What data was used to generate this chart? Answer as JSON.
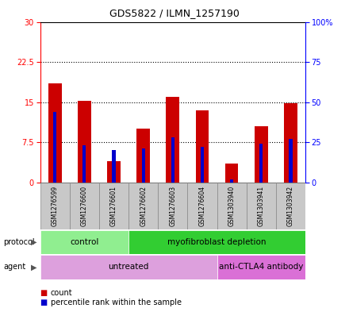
{
  "title": "GDS5822 / ILMN_1257190",
  "samples": [
    "GSM1276599",
    "GSM1276600",
    "GSM1276601",
    "GSM1276602",
    "GSM1276603",
    "GSM1276604",
    "GSM1303940",
    "GSM1303941",
    "GSM1303942"
  ],
  "counts": [
    18.5,
    15.2,
    4.0,
    10.0,
    16.0,
    13.5,
    3.5,
    10.5,
    14.8
  ],
  "percentiles": [
    44,
    23,
    20,
    21,
    28,
    22,
    2,
    24,
    27
  ],
  "ylim_left": [
    0,
    30
  ],
  "ylim_right": [
    0,
    100
  ],
  "yticks_left": [
    0,
    7.5,
    15,
    22.5,
    30
  ],
  "yticks_right": [
    0,
    25,
    50,
    75,
    100
  ],
  "protocol_groups": [
    {
      "label": "control",
      "start": 0,
      "end": 3,
      "color": "#90ee90"
    },
    {
      "label": "myofibroblast depletion",
      "start": 3,
      "end": 9,
      "color": "#32cd32"
    }
  ],
  "agent_groups": [
    {
      "label": "untreated",
      "start": 0,
      "end": 6,
      "color": "#dda0dd"
    },
    {
      "label": "anti-CTLA4 antibody",
      "start": 6,
      "end": 9,
      "color": "#da70d6"
    }
  ],
  "bar_color": "#cc0000",
  "percentile_color": "#0000cc",
  "grid_color": "black",
  "sample_bg_color": "#c8c8c8",
  "sample_border_color": "#888888",
  "label_protocol": "protocol",
  "label_agent": "agent",
  "legend_count": "count",
  "legend_percentile": "percentile rank within the sample",
  "title_fontsize": 9,
  "tick_fontsize": 7,
  "label_fontsize": 7,
  "sample_fontsize": 5.5,
  "group_fontsize": 7.5
}
